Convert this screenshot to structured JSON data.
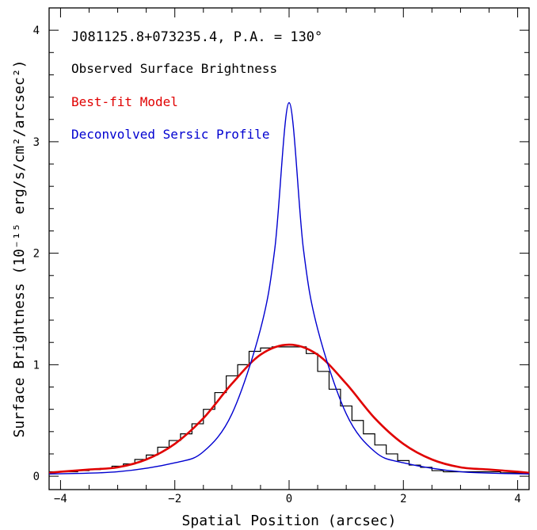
{
  "chart_data": {
    "type": "line",
    "title": "J081125.8+073235.4, P.A. = 130°",
    "xlabel": "Spatial Position (arcsec)",
    "ylabel": "Surface Brightness (10⁻¹⁵ erg/s/cm²/arcsec²)",
    "xlim": [
      -4.2,
      4.2
    ],
    "ylim": [
      -0.12,
      4.2
    ],
    "x_ticks": [
      -4,
      -2,
      0,
      2,
      4
    ],
    "x_tick_labels": [
      "−4",
      "−2",
      "0",
      "2",
      "4"
    ],
    "y_ticks": [
      0,
      1,
      2,
      3,
      4
    ],
    "y_tick_labels": [
      "0",
      "1",
      "2",
      "3",
      "4"
    ],
    "grid": false,
    "legend_placement": "top-left",
    "series": [
      {
        "name": "Observed Surface Brightness",
        "style": "step",
        "color": "#000000",
        "bin_width": 0.2,
        "x": [
          -4.2,
          -4.0,
          -3.8,
          -3.6,
          -3.4,
          -3.2,
          -3.0,
          -2.8,
          -2.6,
          -2.4,
          -2.2,
          -2.0,
          -1.8,
          -1.6,
          -1.4,
          -1.2,
          -1.0,
          -0.8,
          -0.6,
          -0.4,
          -0.2,
          0.0,
          0.2,
          0.4,
          0.6,
          0.8,
          1.0,
          1.2,
          1.4,
          1.6,
          1.8,
          2.0,
          2.2,
          2.4,
          2.6,
          2.8,
          3.0,
          3.2,
          3.4,
          3.6,
          3.8,
          4.0,
          4.2
        ],
        "values": [
          0.04,
          0.04,
          0.04,
          0.05,
          0.06,
          0.07,
          0.09,
          0.11,
          0.15,
          0.19,
          0.26,
          0.32,
          0.38,
          0.47,
          0.6,
          0.75,
          0.9,
          1.0,
          1.12,
          1.15,
          1.16,
          1.16,
          1.16,
          1.1,
          0.94,
          0.78,
          0.63,
          0.5,
          0.38,
          0.28,
          0.2,
          0.14,
          0.1,
          0.08,
          0.05,
          0.04,
          0.04,
          0.04,
          0.04,
          0.04,
          0.03,
          0.03,
          0.03
        ]
      },
      {
        "name": "Best-fit Model",
        "style": "line",
        "color": "#e00000",
        "peak": 1.18,
        "center": 0.0,
        "x": [
          -4.2,
          -4.0,
          -3.5,
          -3.0,
          -2.5,
          -2.0,
          -1.5,
          -1.0,
          -0.5,
          0.0,
          0.5,
          1.0,
          1.5,
          2.0,
          2.5,
          3.0,
          3.5,
          4.0,
          4.2
        ],
        "values": [
          0.03,
          0.04,
          0.06,
          0.08,
          0.15,
          0.29,
          0.52,
          0.83,
          1.09,
          1.18,
          1.09,
          0.83,
          0.52,
          0.29,
          0.15,
          0.08,
          0.06,
          0.04,
          0.03
        ]
      },
      {
        "name": "Deconvolved Sersic Profile",
        "style": "line",
        "color": "#0000d0",
        "peak": 3.35,
        "center": 0.0,
        "x": [
          -4.2,
          -3.0,
          -2.0,
          -1.5,
          -1.0,
          -0.5,
          -0.25,
          0.0,
          0.25,
          0.5,
          1.0,
          1.5,
          2.0,
          3.0,
          4.2
        ],
        "values": [
          0.02,
          0.04,
          0.12,
          0.22,
          0.56,
          1.32,
          2.04,
          3.35,
          2.04,
          1.32,
          0.56,
          0.22,
          0.12,
          0.04,
          0.02
        ]
      }
    ]
  },
  "colors": {
    "observed": "#000000",
    "model": "#e00000",
    "sersic": "#0000d0"
  }
}
